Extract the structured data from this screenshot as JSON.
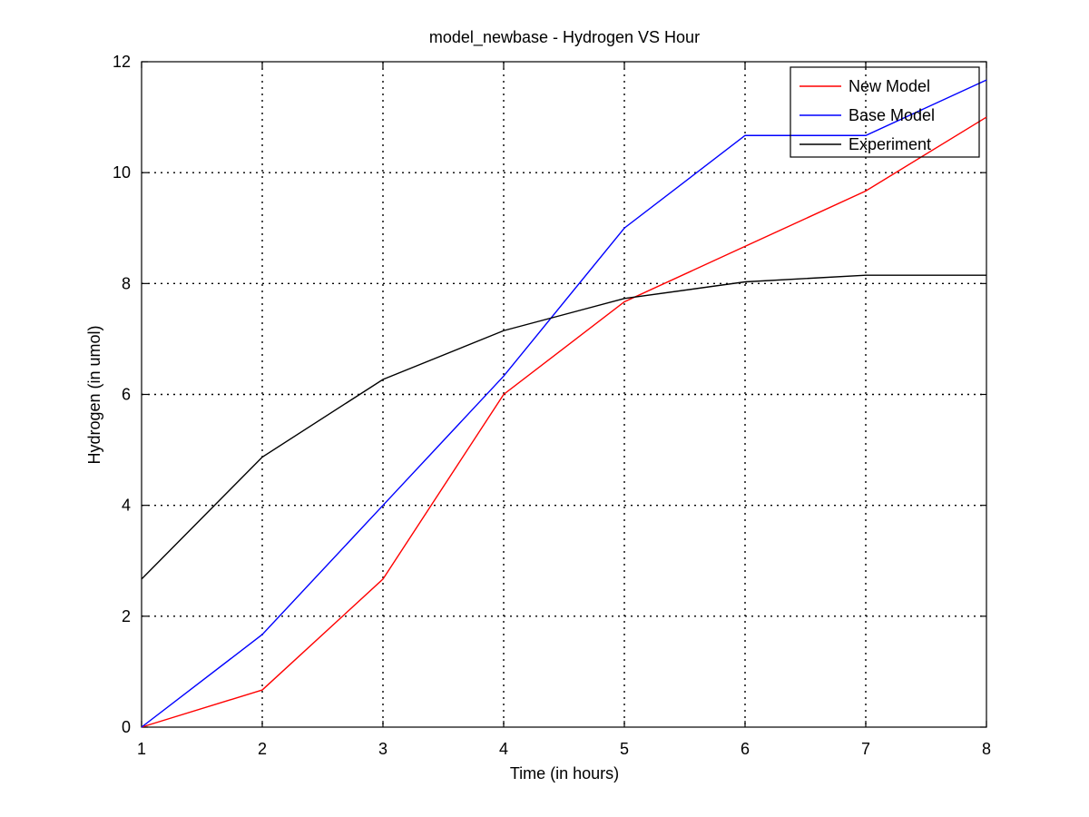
{
  "chart_data": {
    "type": "line",
    "title": "model_newbase - Hydrogen VS Hour",
    "xlabel": "Time (in hours)",
    "ylabel": "Hydrogen (in umol)",
    "x": [
      1,
      2,
      3,
      4,
      5,
      6,
      7,
      8
    ],
    "xlim": [
      1,
      8
    ],
    "ylim": [
      0,
      12
    ],
    "xticks": [
      "1",
      "2",
      "3",
      "4",
      "5",
      "6",
      "7",
      "8"
    ],
    "yticks": [
      "0",
      "2",
      "4",
      "6",
      "8",
      "10",
      "12"
    ],
    "grid": true,
    "legend_position": "top-right",
    "series": [
      {
        "name": "New Model",
        "color": "#ff0000",
        "values": [
          0,
          0.67,
          2.67,
          6.0,
          7.67,
          8.67,
          9.67,
          11.0
        ]
      },
      {
        "name": "Base Model",
        "color": "#0000ff",
        "values": [
          0,
          1.67,
          4.0,
          6.33,
          9.0,
          10.67,
          10.67,
          11.67
        ]
      },
      {
        "name": "Experiment",
        "color": "#000000",
        "values": [
          2.67,
          4.87,
          6.27,
          7.15,
          7.73,
          8.03,
          8.15,
          8.15
        ]
      }
    ]
  }
}
